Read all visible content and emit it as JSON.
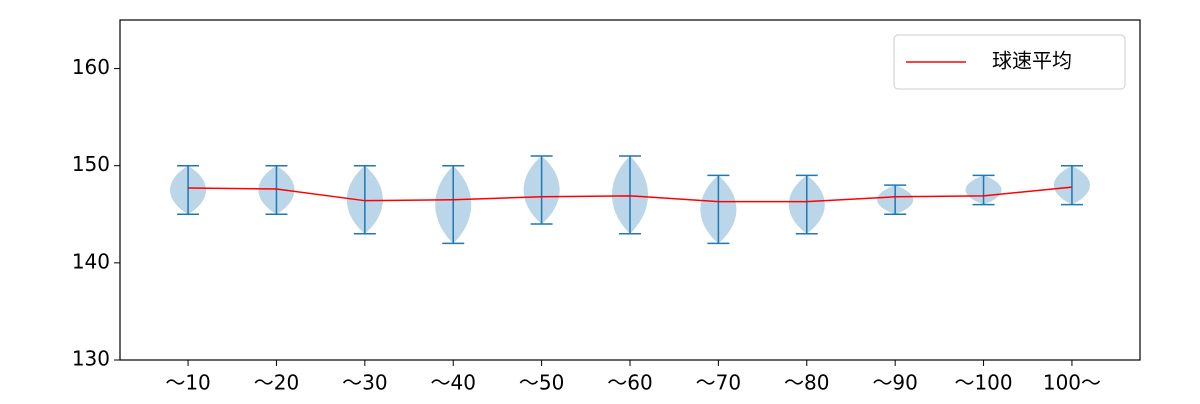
{
  "chart_data": {
    "type": "violin",
    "categories": [
      "〜10",
      "〜20",
      "〜30",
      "〜40",
      "〜50",
      "〜60",
      "〜70",
      "〜80",
      "〜90",
      "〜100",
      "100〜"
    ],
    "min": [
      145,
      145,
      143,
      142,
      144,
      143,
      142,
      143,
      145,
      146,
      146
    ],
    "max": [
      150,
      150,
      150,
      150,
      151,
      151,
      149,
      149,
      148,
      149,
      150
    ],
    "violin_color": "#1f77b4",
    "series": [
      {
        "name": "球速平均",
        "color": "#ff0000",
        "values": [
          147.7,
          147.6,
          146.4,
          146.5,
          146.8,
          146.9,
          146.3,
          146.3,
          146.8,
          146.9,
          147.8
        ]
      }
    ],
    "ylim": [
      130,
      165
    ],
    "yticks": [
      130,
      140,
      150,
      160
    ],
    "legend": "upper right"
  }
}
